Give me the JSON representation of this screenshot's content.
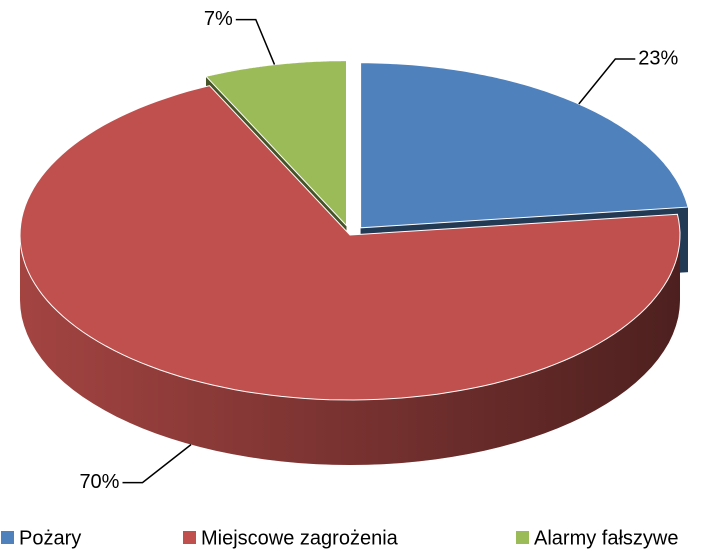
{
  "chart_data": {
    "type": "pie3d",
    "categories": [
      "Pożary",
      "Miejscowe zagrożenia",
      "Alarmy fałszywe"
    ],
    "values": [
      23,
      70,
      7
    ],
    "value_labels": [
      "23%",
      "70%",
      "7%"
    ],
    "colors": [
      "#4f81bd",
      "#c0504d",
      "#9bbb59"
    ],
    "legend": "bottom"
  }
}
